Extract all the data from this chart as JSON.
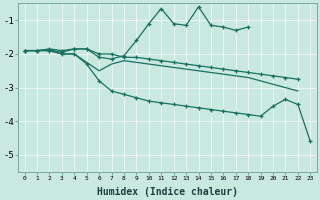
{
  "xlabel": "Humidex (Indice chaleur)",
  "xlim": [
    -0.5,
    23.5
  ],
  "ylim": [
    -5.5,
    -0.5
  ],
  "yticks": [
    -5,
    -4,
    -3,
    -2,
    -1
  ],
  "xticks": [
    0,
    1,
    2,
    3,
    4,
    5,
    6,
    7,
    8,
    9,
    10,
    11,
    12,
    13,
    14,
    15,
    16,
    17,
    18,
    19,
    20,
    21,
    22,
    23
  ],
  "bg_color": "#c8e8e0",
  "grid_color": "#a0c8c0",
  "line_color": "#1a7060",
  "l1x": [
    0,
    1,
    2,
    3,
    4,
    5,
    6,
    7,
    8,
    9,
    10,
    11,
    12,
    13,
    14,
    15,
    16,
    17,
    18
  ],
  "l1y": [
    -1.9,
    -1.9,
    -1.85,
    -1.9,
    -1.85,
    -1.85,
    -2.1,
    -2.15,
    -2.05,
    -1.6,
    -1.1,
    -0.65,
    -1.1,
    -1.15,
    -0.6,
    -1.15,
    -1.2,
    -1.3,
    -1.2
  ],
  "l2x": [
    0,
    1,
    2,
    3,
    4,
    5,
    6,
    7,
    8,
    9,
    10,
    11,
    12,
    13,
    14,
    15,
    16,
    17,
    18,
    19,
    20,
    21,
    22
  ],
  "l2y": [
    -1.9,
    -1.9,
    -1.88,
    -1.95,
    -1.85,
    -1.85,
    -2.0,
    -2.0,
    -2.1,
    -2.1,
    -2.15,
    -2.2,
    -2.25,
    -2.3,
    -2.35,
    -2.4,
    -2.45,
    -2.5,
    -2.55,
    -2.6,
    -2.65,
    -2.7,
    -2.75
  ],
  "l3x": [
    0,
    1,
    2,
    3,
    4,
    5,
    6,
    7,
    8,
    9,
    10,
    11,
    12,
    13,
    14,
    15,
    16,
    17,
    18,
    19,
    20,
    21,
    22
  ],
  "l3y": [
    -1.9,
    -1.9,
    -1.9,
    -2.0,
    -2.0,
    -2.25,
    -2.5,
    -2.3,
    -2.2,
    -2.25,
    -2.3,
    -2.35,
    -2.4,
    -2.45,
    -2.5,
    -2.55,
    -2.6,
    -2.65,
    -2.7,
    -2.8,
    -2.9,
    -3.0,
    -3.1
  ],
  "l4x": [
    0,
    1,
    2,
    3,
    4,
    5,
    6,
    7,
    8,
    9,
    10,
    11,
    12,
    13,
    14,
    15,
    16,
    17,
    18,
    19,
    20,
    21,
    22,
    23
  ],
  "l4y": [
    -1.9,
    -1.9,
    -1.9,
    -2.0,
    -2.0,
    -2.3,
    -2.8,
    -3.1,
    -3.2,
    -3.3,
    -3.4,
    -3.45,
    -3.5,
    -3.55,
    -3.6,
    -3.65,
    -3.7,
    -3.75,
    -3.8,
    -3.85,
    -3.55,
    -3.35,
    -3.5,
    -4.6
  ]
}
